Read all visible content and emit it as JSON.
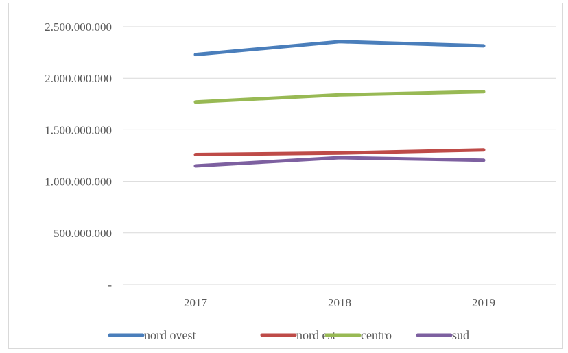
{
  "chart_data": {
    "type": "line",
    "title": "",
    "xlabel": "",
    "ylabel": "",
    "categories": [
      "2017",
      "2018",
      "2019"
    ],
    "ylim": [
      0,
      2500000000
    ],
    "y_ticks": [
      {
        "value": 0,
        "label": "-"
      },
      {
        "value": 500000000,
        "label": "500.000.000"
      },
      {
        "value": 1000000000,
        "label": "1.000.000.000"
      },
      {
        "value": 1500000000,
        "label": "1.500.000.000"
      },
      {
        "value": 2000000000,
        "label": "2.000.000.000"
      },
      {
        "value": 2500000000,
        "label": "2.500.000.000"
      }
    ],
    "grid": true,
    "legend_position": "bottom",
    "series": [
      {
        "name": "nord ovest",
        "color": "#4a7ebb",
        "values": [
          2230000000,
          2355000000,
          2315000000
        ]
      },
      {
        "name": "nord est",
        "color": "#be4b48",
        "values": [
          1260000000,
          1275000000,
          1305000000
        ]
      },
      {
        "name": "centro",
        "color": "#98b954",
        "values": [
          1770000000,
          1840000000,
          1870000000
        ]
      },
      {
        "name": "sud",
        "color": "#7d60a0",
        "values": [
          1150000000,
          1230000000,
          1205000000
        ]
      }
    ]
  }
}
